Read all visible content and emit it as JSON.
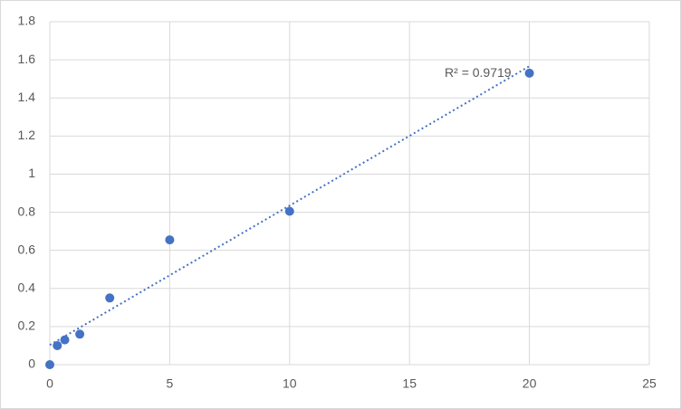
{
  "chart_data": {
    "type": "scatter",
    "x": [
      0,
      0.3125,
      0.625,
      1.25,
      2.5,
      5,
      10,
      20
    ],
    "values": [
      0,
      0.1,
      0.13,
      0.16,
      0.35,
      0.655,
      0.805,
      1.53
    ],
    "color": "#4472c4",
    "trendline": "linear",
    "annotation": "R² = 0.9719",
    "xlim": [
      0,
      25
    ],
    "xticks": [
      0,
      5,
      10,
      15,
      20,
      25
    ],
    "ylim": [
      0,
      1.8
    ],
    "yticks": [
      0,
      0.2,
      0.4,
      0.6,
      0.8,
      1,
      1.2,
      1.4,
      1.6,
      1.8
    ],
    "grid": true
  }
}
